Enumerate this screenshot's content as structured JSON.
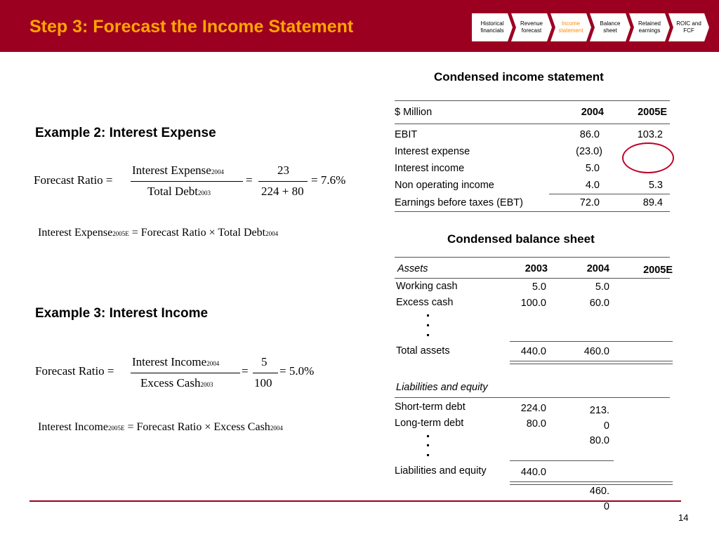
{
  "header": {
    "title": "Step 3: Forecast the Income Statement",
    "steps": [
      {
        "label": "Historical\nfinancials",
        "active": false
      },
      {
        "label": "Revenue\nforecast",
        "active": false
      },
      {
        "label": "Income\nstatement",
        "active": true
      },
      {
        "label": "Balance\nsheet",
        "active": false
      },
      {
        "label": "Retained\nearnings",
        "active": false
      },
      {
        "label": "ROIC and\nFCF",
        "active": false
      }
    ]
  },
  "example2": {
    "heading": "Example 2: Interest Expense",
    "ratio_label": "Forecast Ratio",
    "num_label": "Interest Expense",
    "num_sub": "2004",
    "den_label": "Total Debt",
    "den_sub": "2003",
    "num_value": "23",
    "den_value": "224 + 80",
    "result": "7.6%",
    "formula_lhs": "Interest Expense",
    "formula_lhs_sub": "2005E",
    "formula_rhs": "Forecast Ratio × Total Debt",
    "formula_rhs_sub": "2004"
  },
  "example3": {
    "heading": "Example 3: Interest Income",
    "ratio_label": "Forecast Ratio",
    "num_label": "Interest Income",
    "num_sub": "2004",
    "den_label": "Excess Cash",
    "den_sub": "2003",
    "num_value": "5",
    "den_value": "100",
    "result": "5.0%",
    "formula_lhs": "Interest Income",
    "formula_lhs_sub": "2005E",
    "formula_rhs": "Forecast Ratio × Excess Cash",
    "formula_rhs_sub": "2004"
  },
  "income_statement": {
    "title": "Condensed income statement",
    "unit_label": "$ Million",
    "col_2004": "2004",
    "col_2005e": "2005E",
    "rows": [
      {
        "label": "EBIT",
        "v2004": "86.0",
        "v2005e": "103.2"
      },
      {
        "label": "Interest expense",
        "v2004": "(23.0)",
        "v2005e": ""
      },
      {
        "label": "Interest income",
        "v2004": "5.0",
        "v2005e": ""
      },
      {
        "label": "Non operating income",
        "v2004": "4.0",
        "v2005e": "5.3"
      },
      {
        "label": "Earnings before taxes (EBT)",
        "v2004": "72.0",
        "v2005e": "89.4"
      }
    ]
  },
  "balance_sheet": {
    "title": "Condensed balance sheet",
    "assets_label": "Assets",
    "col_2003": "2003",
    "col_2004": "2004",
    "col_2005e": "2005E",
    "working_cash": {
      "label": "Working cash",
      "v2003": "5.0",
      "v2004": "5.0"
    },
    "excess_cash": {
      "label": "Excess cash",
      "v2003": "100.0",
      "v2004": "60.0"
    },
    "total_assets": {
      "label": "Total assets",
      "v2003": "440.0",
      "v2004": "460.0"
    },
    "liab_label": "Liabilities and equity",
    "short_term_debt": {
      "label": "Short-term debt",
      "v2003": "224.0",
      "v2004": "213.\n0"
    },
    "long_term_debt": {
      "label": "Long-term debt",
      "v2003": "80.0",
      "v2004": "80.0"
    },
    "total_liab": {
      "label": "Liabilities and equity",
      "v2003": "440.0",
      "v2004": "460.\n0"
    }
  },
  "footer": {
    "page_number": "14"
  }
}
